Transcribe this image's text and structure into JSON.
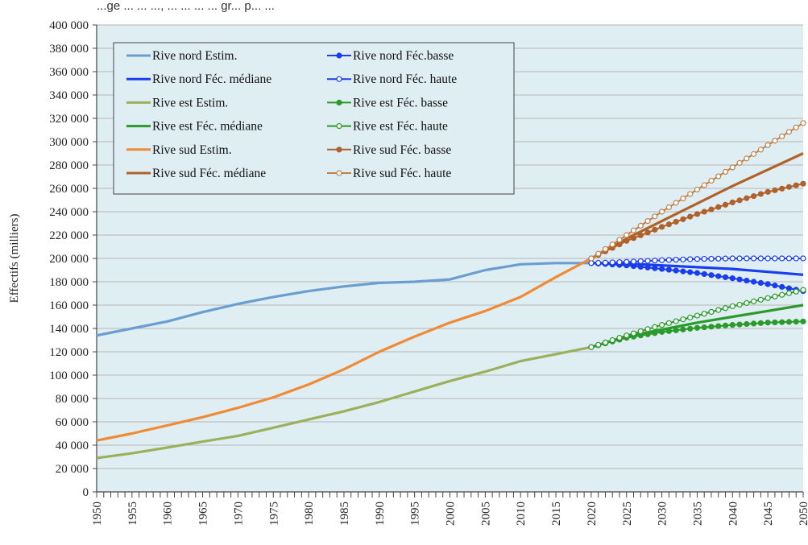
{
  "header": {
    "title_fragment": "...ge ... ... ..., ... ... ... ... gr... p... ..."
  },
  "chart_data": {
    "type": "line",
    "ylabel": "Effectifs (milliers)",
    "xlabel": "",
    "xlim": [
      1950,
      2050
    ],
    "ylim": [
      0,
      400000
    ],
    "x_ticks": [
      1950,
      1955,
      1960,
      1965,
      1970,
      1975,
      1980,
      1985,
      1990,
      1995,
      2000,
      2005,
      2010,
      2015,
      2020,
      2025,
      2030,
      2035,
      2040,
      2045,
      2050
    ],
    "y_ticks": [
      0,
      20000,
      40000,
      60000,
      80000,
      100000,
      120000,
      140000,
      160000,
      180000,
      200000,
      220000,
      240000,
      260000,
      280000,
      300000,
      320000,
      340000,
      360000,
      380000,
      400000
    ],
    "y_tick_labels": [
      "0",
      "20 000",
      "40 000",
      "60 000",
      "80 000",
      "100 000",
      "120 000",
      "140 000",
      "160 000",
      "180 000",
      "200 000",
      "220 000",
      "240 000",
      "260 000",
      "280 000",
      "300 000",
      "320 000",
      "340 000",
      "360 000",
      "380 000",
      "400 000"
    ],
    "grid": "horizontal",
    "legend_placement": "top-left",
    "background_color": "#dfeef3",
    "series": [
      {
        "name": "Rive nord  Estim.",
        "color": "#6a9ed0",
        "marker": "none",
        "x": [
          1950,
          1955,
          1960,
          1965,
          1970,
          1975,
          1980,
          1985,
          1990,
          1995,
          2000,
          2005,
          2010,
          2015,
          2020
        ],
        "y": [
          134000,
          140000,
          146000,
          154000,
          161000,
          167000,
          172000,
          176000,
          179000,
          180000,
          182000,
          190000,
          195000,
          196000,
          196000
        ]
      },
      {
        "name": "Rive nord Féc. médiane",
        "color": "#1a3df0",
        "marker": "none",
        "x": [
          2020,
          2025,
          2030,
          2035,
          2040,
          2045,
          2050
        ],
        "y": [
          196000,
          195500,
          194000,
          192500,
          191000,
          188500,
          186000
        ]
      },
      {
        "name": "Rive nord Féc.basse",
        "color": "#1a3df0",
        "marker": "filled",
        "x": [
          2020,
          2025,
          2030,
          2035,
          2040,
          2045,
          2050
        ],
        "y": [
          196000,
          194000,
          191000,
          187500,
          183000,
          178000,
          172000
        ]
      },
      {
        "name": "Rive nord Féc. haute",
        "color": "#1a3df0",
        "marker": "hollow",
        "x": [
          2020,
          2025,
          2030,
          2035,
          2040,
          2045,
          2050
        ],
        "y": [
          196000,
          197000,
          198500,
          199500,
          200000,
          200000,
          200000
        ]
      },
      {
        "name": "Rive est  Estim.",
        "color": "#9ab05a",
        "marker": "none",
        "x": [
          1950,
          1955,
          1960,
          1965,
          1970,
          1975,
          1980,
          1985,
          1990,
          1995,
          2000,
          2005,
          2010,
          2015,
          2020
        ],
        "y": [
          29000,
          33000,
          38000,
          43000,
          48000,
          55000,
          62000,
          69000,
          77000,
          86000,
          95000,
          103000,
          112000,
          118000,
          124000
        ]
      },
      {
        "name": "Rive est Féc. médiane",
        "color": "#2a9a2a",
        "marker": "none",
        "x": [
          2020,
          2025,
          2030,
          2035,
          2040,
          2045,
          2050
        ],
        "y": [
          124000,
          133000,
          139000,
          145000,
          150000,
          155000,
          160000
        ]
      },
      {
        "name": "Rive est Féc. basse",
        "color": "#2a9a2a",
        "marker": "filled",
        "x": [
          2020,
          2025,
          2030,
          2035,
          2040,
          2045,
          2050
        ],
        "y": [
          124000,
          132000,
          137000,
          140500,
          143000,
          145000,
          146000
        ]
      },
      {
        "name": "Rive est Féc. haute",
        "color": "#2a9a2a",
        "marker": "hollow",
        "x": [
          2020,
          2025,
          2030,
          2035,
          2040,
          2045,
          2050
        ],
        "y": [
          124000,
          134000,
          143000,
          151000,
          159000,
          166000,
          173000
        ]
      },
      {
        "name": "Rive sud  Estim.",
        "color": "#f08a35",
        "marker": "none",
        "x": [
          1950,
          1955,
          1960,
          1965,
          1970,
          1975,
          1980,
          1985,
          1990,
          1995,
          2000,
          2005,
          2010,
          2015,
          2020
        ],
        "y": [
          44000,
          50000,
          57000,
          64000,
          72000,
          81000,
          92000,
          105000,
          120000,
          133000,
          145000,
          155000,
          167000,
          184000,
          200000
        ]
      },
      {
        "name": "Rive sud Féc. médiane",
        "color": "#b0612a",
        "marker": "none",
        "x": [
          2020,
          2025,
          2030,
          2035,
          2040,
          2045,
          2050
        ],
        "y": [
          200000,
          217000,
          232000,
          247000,
          262000,
          276000,
          290000
        ]
      },
      {
        "name": "Rive sud Féc. basse",
        "color": "#b0612a",
        "marker": "filled",
        "x": [
          2020,
          2025,
          2030,
          2035,
          2040,
          2045,
          2050
        ],
        "y": [
          200000,
          215000,
          227000,
          238000,
          248000,
          257000,
          264000
        ]
      },
      {
        "name": "Rive sud Féc. haute",
        "color": "#c0804a",
        "marker": "hollow",
        "x": [
          2020,
          2025,
          2030,
          2035,
          2040,
          2045,
          2050
        ],
        "y": [
          200000,
          220000,
          240000,
          259000,
          278000,
          297000,
          316000
        ]
      }
    ]
  }
}
